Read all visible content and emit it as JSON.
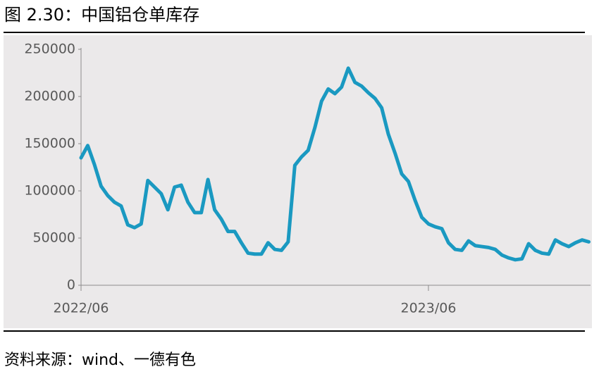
{
  "chart_data": {
    "type": "line",
    "title": "图 2.30：中国铝仓单库存",
    "source": "资料来源：wind、一德有色",
    "categories": [
      "2022/06",
      null,
      null,
      null,
      null,
      null,
      null,
      null,
      null,
      null,
      null,
      null,
      null,
      null,
      null,
      null,
      null,
      null,
      null,
      null,
      null,
      null,
      null,
      null,
      null,
      null,
      null,
      null,
      null,
      null,
      null,
      null,
      null,
      null,
      null,
      null,
      null,
      null,
      null,
      null,
      null,
      null,
      null,
      null,
      null,
      null,
      null,
      null,
      null,
      null,
      null,
      null,
      "2023/06",
      null,
      null,
      null,
      null,
      null,
      null,
      null,
      null,
      null,
      null,
      null,
      null,
      null,
      null,
      null,
      null,
      null,
      null,
      null,
      null,
      null,
      null,
      null,
      null
    ],
    "series": [
      {
        "name": null,
        "color": "#1a99c1",
        "values": [
          135000,
          148000,
          128000,
          105000,
          95000,
          88000,
          84000,
          64000,
          61000,
          65000,
          111000,
          104000,
          97000,
          80000,
          104000,
          106000,
          88000,
          77000,
          77000,
          112000,
          80000,
          70000,
          57000,
          57000,
          45000,
          34000,
          33000,
          33000,
          45000,
          38000,
          37000,
          46000,
          127000,
          136000,
          143000,
          167000,
          195000,
          208000,
          203000,
          210000,
          230000,
          215000,
          211000,
          204000,
          198000,
          188000,
          160000,
          140000,
          118000,
          110000,
          90000,
          72000,
          65000,
          62000,
          60000,
          45000,
          38000,
          37000,
          47000,
          42000,
          41000,
          40000,
          38000,
          32000,
          29000,
          27000,
          28000,
          44000,
          37000,
          34000,
          33000,
          48000,
          44000,
          41000,
          45000,
          48000,
          46000
        ]
      }
    ],
    "ylim": [
      0,
      250000
    ],
    "yticks": [
      0,
      50000,
      100000,
      150000,
      200000,
      250000
    ]
  }
}
